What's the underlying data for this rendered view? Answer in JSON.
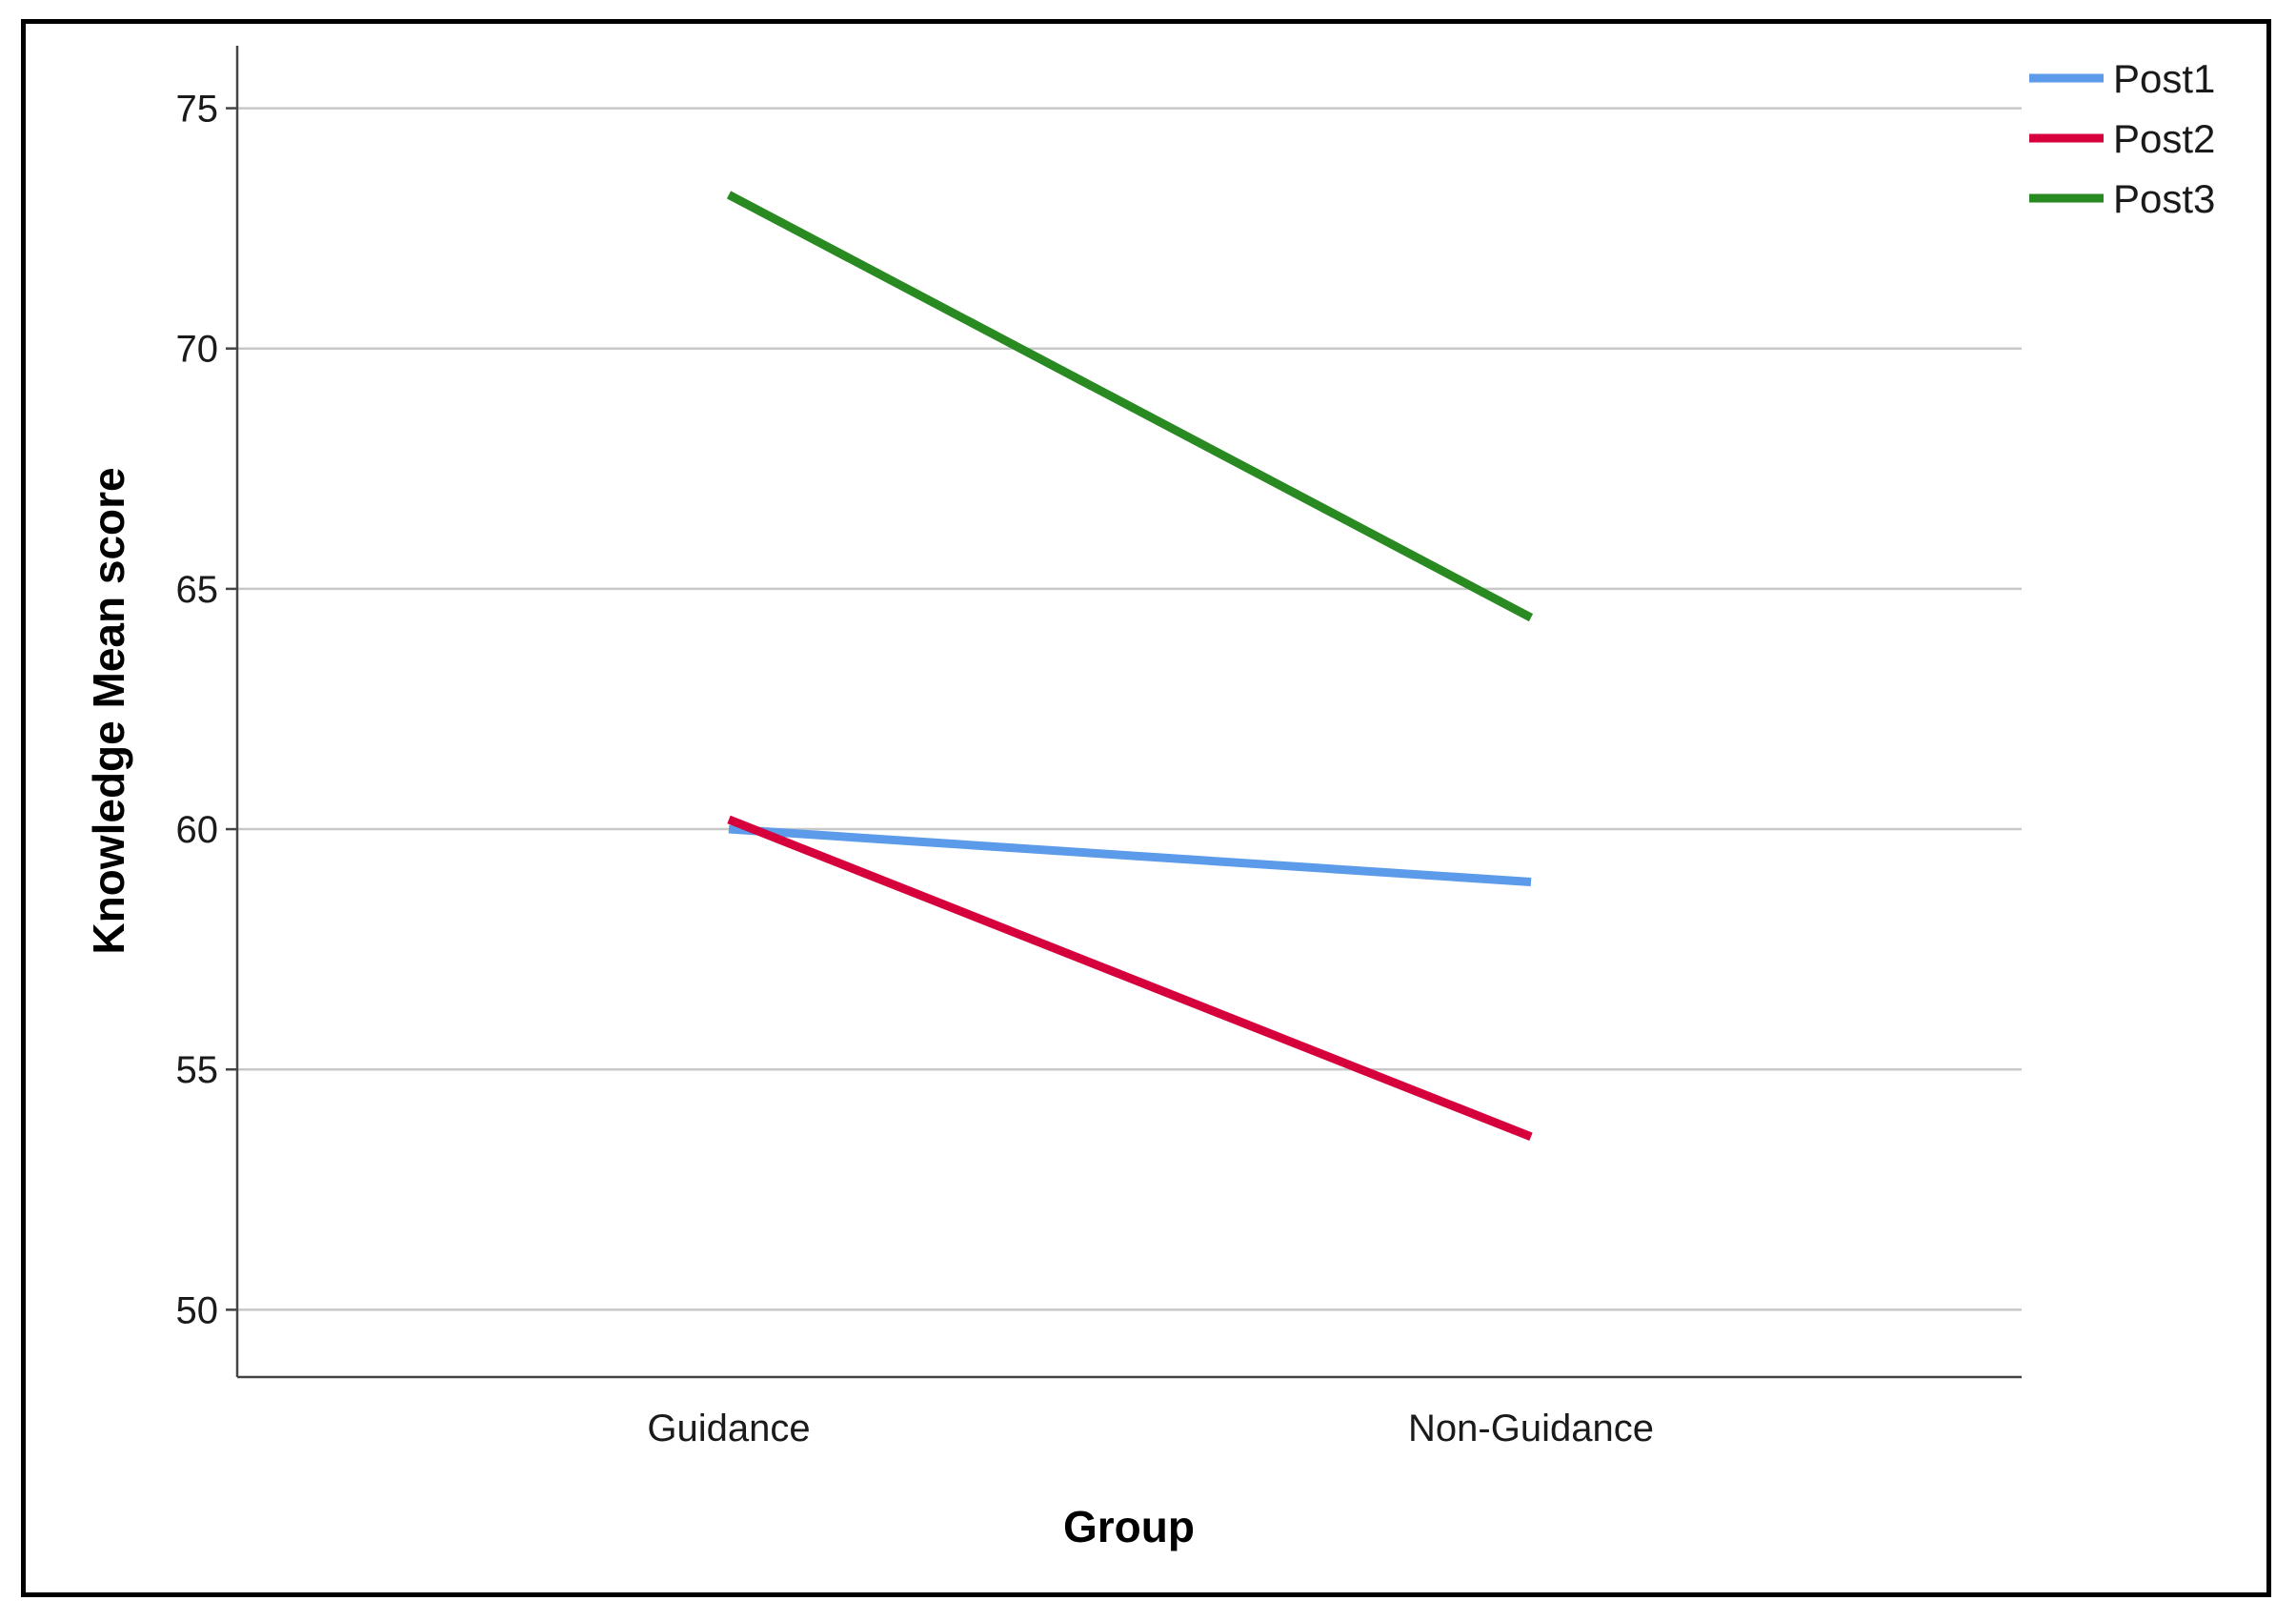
{
  "chart_data": {
    "type": "line",
    "title": "",
    "xlabel": "Group",
    "ylabel": "Knowledge Mean score",
    "categories": [
      "Guidance",
      "Non-Guidance"
    ],
    "ylim": [
      48.6,
      76.3
    ],
    "yticks": [
      50,
      55,
      60,
      65,
      70,
      75
    ],
    "grid": "horizontal",
    "legend_position": "top-right",
    "series": [
      {
        "name": "Post1",
        "values": [
          60.0,
          58.9
        ],
        "color": "#5b9bea"
      },
      {
        "name": "Post2",
        "values": [
          60.2,
          53.6
        ],
        "color": "#d6003c"
      },
      {
        "name": "Post3",
        "values": [
          73.2,
          64.4
        ],
        "color": "#2a8a22"
      }
    ]
  }
}
